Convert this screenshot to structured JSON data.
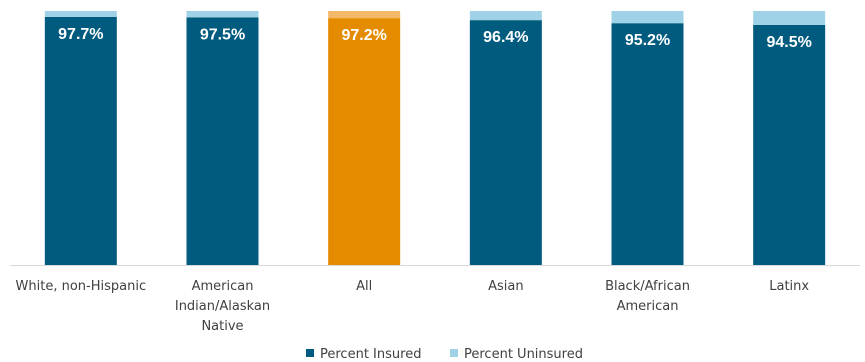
{
  "chart_data": {
    "type": "bar",
    "stacked": true,
    "ylim": [
      0,
      100
    ],
    "grid": false,
    "legend_position": "bottom",
    "categories": [
      [
        "White, non-Hispanic"
      ],
      [
        "American",
        "Indian/Alaskan",
        "Native"
      ],
      [
        "All"
      ],
      [
        "Asian"
      ],
      [
        "Black/African",
        "American"
      ],
      [
        "Latinx"
      ]
    ],
    "series": [
      {
        "name": "Percent Insured",
        "values": [
          97.7,
          97.5,
          97.2,
          96.4,
          95.2,
          94.5
        ],
        "data_labels": [
          "97.7%",
          "97.5%",
          "97.2%",
          "96.4%",
          "95.2%",
          "94.5%"
        ]
      },
      {
        "name": "Percent Uninsured",
        "values": [
          2.3,
          2.5,
          2.8,
          3.6,
          4.8,
          5.5
        ]
      }
    ],
    "colors": {
      "insured": "#005b7f",
      "uninsured": "#9fd2e6",
      "highlight_insured": "#e58b00",
      "highlight_uninsured": "#f1b968",
      "axis": "#d9d9d9"
    },
    "highlight_category_index": 2
  }
}
